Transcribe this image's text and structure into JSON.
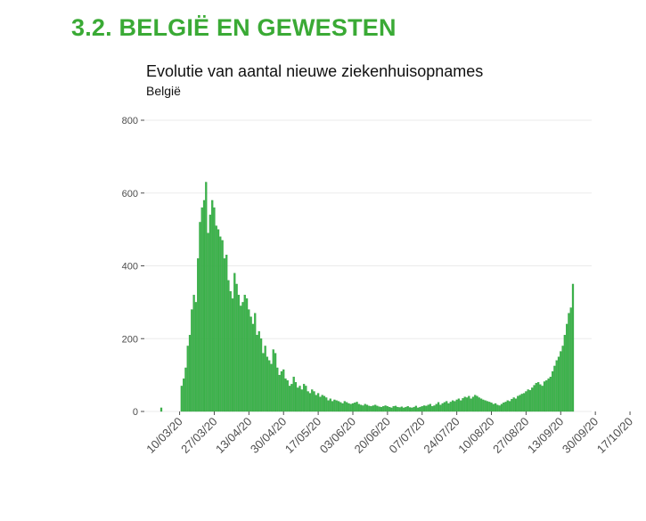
{
  "heading": "3.2. BELGIË EN GEWESTEN",
  "chart_data": {
    "type": "bar",
    "title": "Evolutie van aantal nieuwe ziekenhuisopnames",
    "subtitle": "België",
    "xlabel": "",
    "ylabel": "",
    "ylim": [
      0,
      800
    ],
    "y_ticks": [
      0,
      200,
      400,
      600,
      800
    ],
    "x_ticks": [
      "10/03/20",
      "27/03/20",
      "13/04/20",
      "30/04/20",
      "17/05/20",
      "03/06/20",
      "20/06/20",
      "07/07/20",
      "24/07/20",
      "10/08/20",
      "27/08/20",
      "13/09/20",
      "30/09/20",
      "17/10/20"
    ],
    "grid": true,
    "bar_color": "#3cb44b",
    "start_date": "01/03/20",
    "end_date": "17/10/20",
    "values": [
      10,
      0,
      0,
      0,
      0,
      0,
      0,
      0,
      0,
      0,
      70,
      90,
      120,
      180,
      210,
      280,
      320,
      300,
      420,
      520,
      560,
      580,
      630,
      490,
      540,
      580,
      560,
      510,
      500,
      480,
      470,
      420,
      430,
      360,
      330,
      310,
      380,
      350,
      320,
      290,
      300,
      320,
      310,
      280,
      260,
      240,
      270,
      210,
      220,
      200,
      160,
      180,
      150,
      140,
      130,
      170,
      160,
      120,
      100,
      110,
      115,
      90,
      85,
      70,
      75,
      95,
      80,
      65,
      70,
      60,
      75,
      70,
      55,
      50,
      60,
      55,
      45,
      50,
      40,
      45,
      42,
      38,
      30,
      35,
      28,
      32,
      30,
      28,
      25,
      22,
      28,
      25,
      22,
      20,
      22,
      24,
      26,
      20,
      18,
      16,
      20,
      18,
      15,
      14,
      16,
      18,
      15,
      13,
      12,
      14,
      16,
      14,
      12,
      10,
      14,
      15,
      12,
      11,
      13,
      10,
      12,
      14,
      11,
      10,
      12,
      15,
      10,
      12,
      14,
      16,
      15,
      18,
      20,
      14,
      16,
      20,
      25,
      18,
      22,
      25,
      28,
      22,
      26,
      30,
      28,
      32,
      35,
      30,
      36,
      40,
      38,
      42,
      35,
      40,
      45,
      42,
      38,
      35,
      32,
      30,
      28,
      26,
      24,
      20,
      22,
      18,
      16,
      20,
      24,
      26,
      30,
      28,
      34,
      38,
      35,
      42,
      45,
      48,
      50,
      55,
      60,
      58,
      65,
      72,
      78,
      80,
      74,
      70,
      82,
      85,
      90,
      95,
      110,
      125,
      140,
      150,
      165,
      180,
      210,
      240,
      270,
      285,
      350
    ]
  }
}
